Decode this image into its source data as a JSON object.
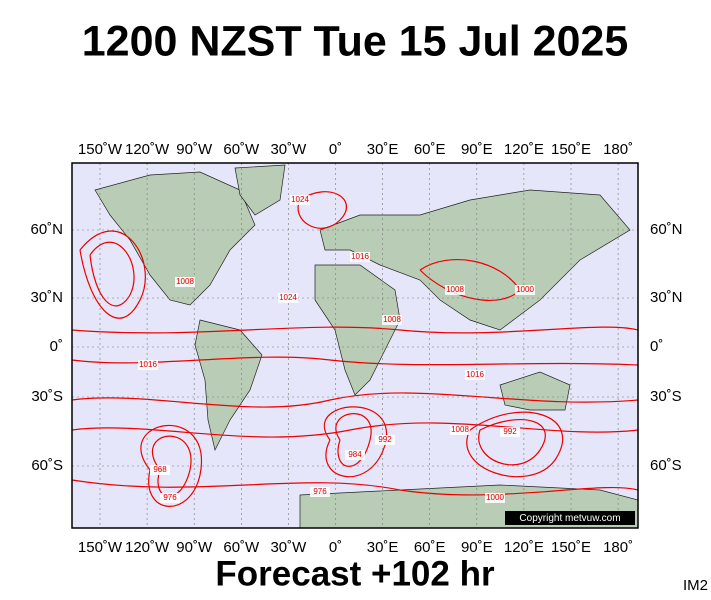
{
  "title": "1200 NZST Tue 15 Jul 2025",
  "longitude_labels": [
    "150˚W",
    "120˚W",
    "90˚W",
    "60˚W",
    "30˚W",
    "0˚",
    "30˚E",
    "60˚E",
    "90˚E",
    "120˚E",
    "150˚E",
    "180˚"
  ],
  "latitude_labels": [
    "60˚N",
    "30˚N",
    "0˚",
    "30˚S",
    "60˚S"
  ],
  "contour_labels": [
    "1016",
    "1008",
    "1024",
    "1016",
    "1008",
    "1008",
    "1016",
    "1024",
    "992",
    "1000",
    "976",
    "968",
    "984",
    "992",
    "1008",
    "1000",
    "976"
  ],
  "copyright": "Copyright metvuw.com",
  "forecast": "Forecast +102 hr",
  "image_id": "IM2"
}
